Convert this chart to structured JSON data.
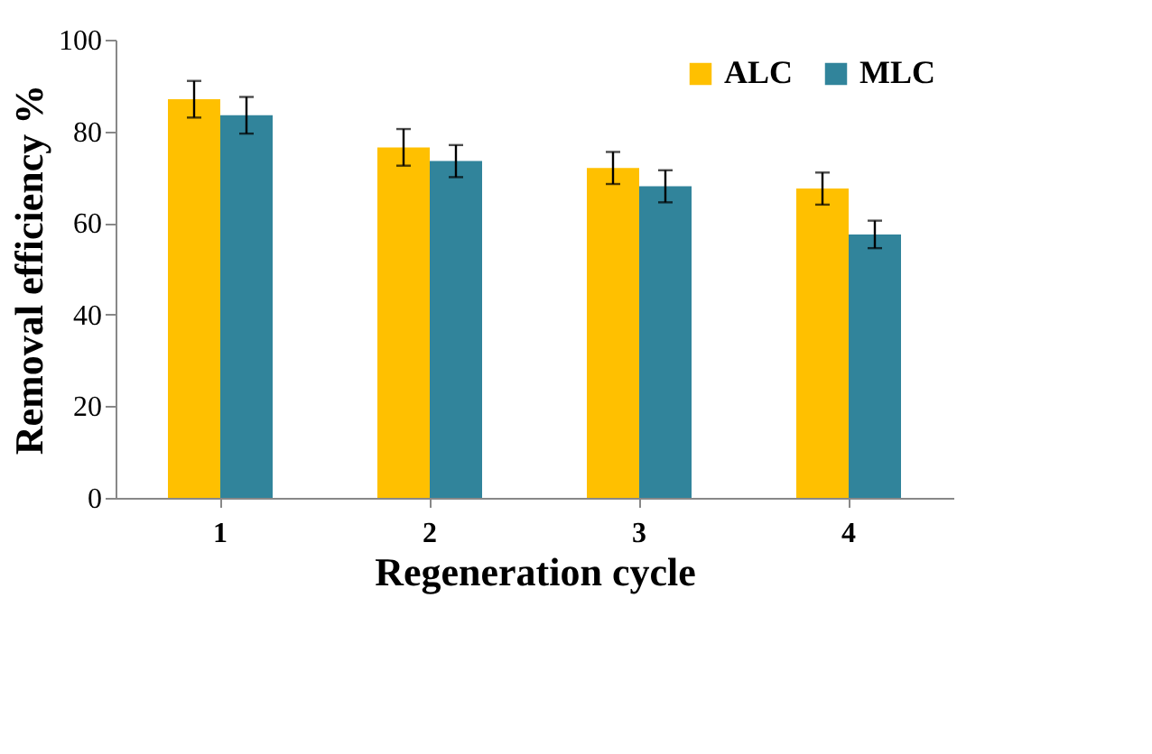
{
  "chart_data": {
    "type": "bar",
    "xlabel": "Regeneration cycle",
    "ylabel": "Removal efficiency %",
    "categories": [
      "1",
      "2",
      "3",
      "4"
    ],
    "series": [
      {
        "name": "ALC",
        "color": "#ffc000",
        "values": [
          87,
          76.5,
          72,
          67.5
        ],
        "errors": [
          4,
          4,
          3.5,
          3.5
        ]
      },
      {
        "name": "MLC",
        "color": "#31849b",
        "values": [
          83.5,
          73.5,
          68,
          57.5
        ],
        "errors": [
          4,
          3.5,
          3.5,
          3
        ]
      }
    ],
    "ylim": [
      0,
      100
    ],
    "yticks": [
      0,
      20,
      40,
      60,
      80,
      100
    ],
    "grid": false,
    "legend": "top right"
  }
}
